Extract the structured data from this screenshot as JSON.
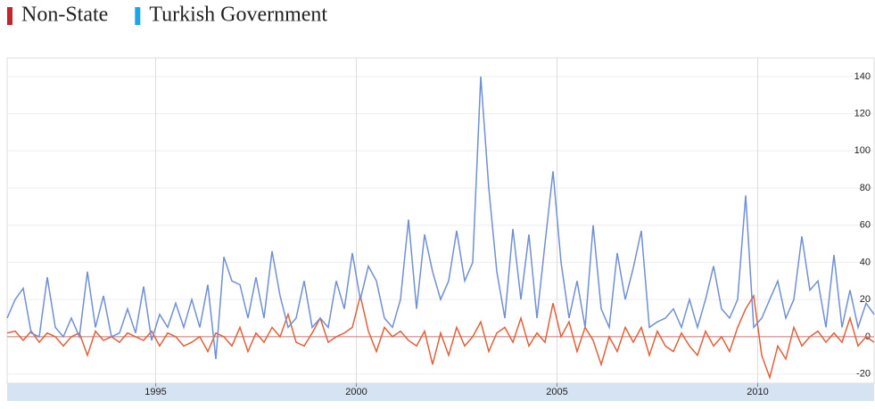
{
  "chart_data": {
    "type": "line",
    "x": [
      1991.3,
      1991.5,
      1991.7,
      1991.9,
      1992.1,
      1992.3,
      1992.5,
      1992.7,
      1992.9,
      1993.1,
      1993.3,
      1993.5,
      1993.7,
      1993.9,
      1994.1,
      1994.3,
      1994.5,
      1994.7,
      1994.9,
      1995.1,
      1995.3,
      1995.5,
      1995.7,
      1995.9,
      1996.1,
      1996.3,
      1996.5,
      1996.7,
      1996.9,
      1997.1,
      1997.3,
      1997.5,
      1997.7,
      1997.9,
      1998.1,
      1998.3,
      1998.5,
      1998.7,
      1998.9,
      1999.1,
      1999.3,
      1999.5,
      1999.7,
      1999.9,
      2000.1,
      2000.3,
      2000.5,
      2000.7,
      2000.9,
      2001.1,
      2001.3,
      2001.5,
      2001.7,
      2001.9,
      2002.1,
      2002.3,
      2002.5,
      2002.7,
      2002.9,
      2003.1,
      2003.3,
      2003.5,
      2003.7,
      2003.9,
      2004.1,
      2004.3,
      2004.5,
      2004.7,
      2004.9,
      2005.1,
      2005.3,
      2005.5,
      2005.7,
      2005.9,
      2006.1,
      2006.3,
      2006.5,
      2006.7,
      2006.9,
      2007.1,
      2007.3,
      2007.5,
      2007.7,
      2007.9,
      2008.1,
      2008.3,
      2008.5,
      2008.7,
      2008.9,
      2009.1,
      2009.3,
      2009.5,
      2009.7,
      2009.9,
      2010.1,
      2010.3,
      2010.5,
      2010.7,
      2010.9,
      2011.1,
      2011.3,
      2011.5,
      2011.7,
      2011.9,
      2012.1,
      2012.3,
      2012.5,
      2012.7,
      2012.9
    ],
    "series": [
      {
        "name": "Non-State",
        "color": "#e2603a",
        "marker_color": "#c8232b",
        "values": [
          2,
          3,
          -2,
          3,
          -3,
          2,
          0,
          -5,
          0,
          2,
          -10,
          3,
          -2,
          0,
          -3,
          2,
          0,
          -2,
          3,
          -5,
          2,
          0,
          -5,
          -3,
          0,
          -8,
          2,
          0,
          -5,
          5,
          -8,
          2,
          -3,
          5,
          0,
          12,
          -3,
          -5,
          2,
          10,
          -3,
          0,
          2,
          5,
          22,
          3,
          -8,
          5,
          0,
          3,
          -2,
          -5,
          3,
          -15,
          2,
          -10,
          5,
          -5,
          0,
          8,
          -8,
          2,
          5,
          -3,
          10,
          -5,
          2,
          -3,
          18,
          0,
          8,
          -8,
          5,
          -2,
          -15,
          0,
          -8,
          5,
          -3,
          5,
          -10,
          3,
          -5,
          -8,
          2,
          -5,
          -10,
          3,
          -5,
          0,
          -8,
          5,
          15,
          22,
          -10,
          -22,
          -5,
          -12,
          5,
          -5,
          0,
          3,
          -3,
          2,
          -3,
          10,
          -5,
          0,
          -3
        ]
      },
      {
        "name": "Turkish Government",
        "color": "#6f90d4",
        "marker_color": "#1aa6e8",
        "values": [
          10,
          20,
          26,
          2,
          0,
          32,
          5,
          0,
          10,
          0,
          35,
          5,
          22,
          0,
          2,
          15,
          2,
          27,
          -2,
          12,
          5,
          18,
          5,
          20,
          5,
          28,
          -12,
          43,
          30,
          28,
          10,
          32,
          10,
          46,
          22,
          5,
          10,
          30,
          5,
          10,
          5,
          30,
          15,
          45,
          20,
          38,
          30,
          10,
          5,
          20,
          63,
          15,
          55,
          35,
          20,
          30,
          57,
          30,
          40,
          140,
          80,
          35,
          10,
          58,
          20,
          55,
          10,
          50,
          89,
          40,
          10,
          30,
          5,
          60,
          15,
          5,
          45,
          20,
          37,
          57,
          5,
          8,
          10,
          15,
          5,
          20,
          5,
          20,
          38,
          15,
          10,
          20,
          76,
          5,
          10,
          20,
          30,
          10,
          20,
          54,
          25,
          30,
          5,
          44,
          5,
          25,
          5,
          18,
          12
        ]
      }
    ],
    "xlim": [
      1991.3,
      2012.9
    ],
    "xticks": [
      1995,
      2000,
      2005,
      2010
    ],
    "ylim": [
      -25,
      150
    ],
    "yticks": [
      -20,
      0,
      20,
      40,
      60,
      80,
      100,
      120,
      140
    ],
    "grid": true
  }
}
